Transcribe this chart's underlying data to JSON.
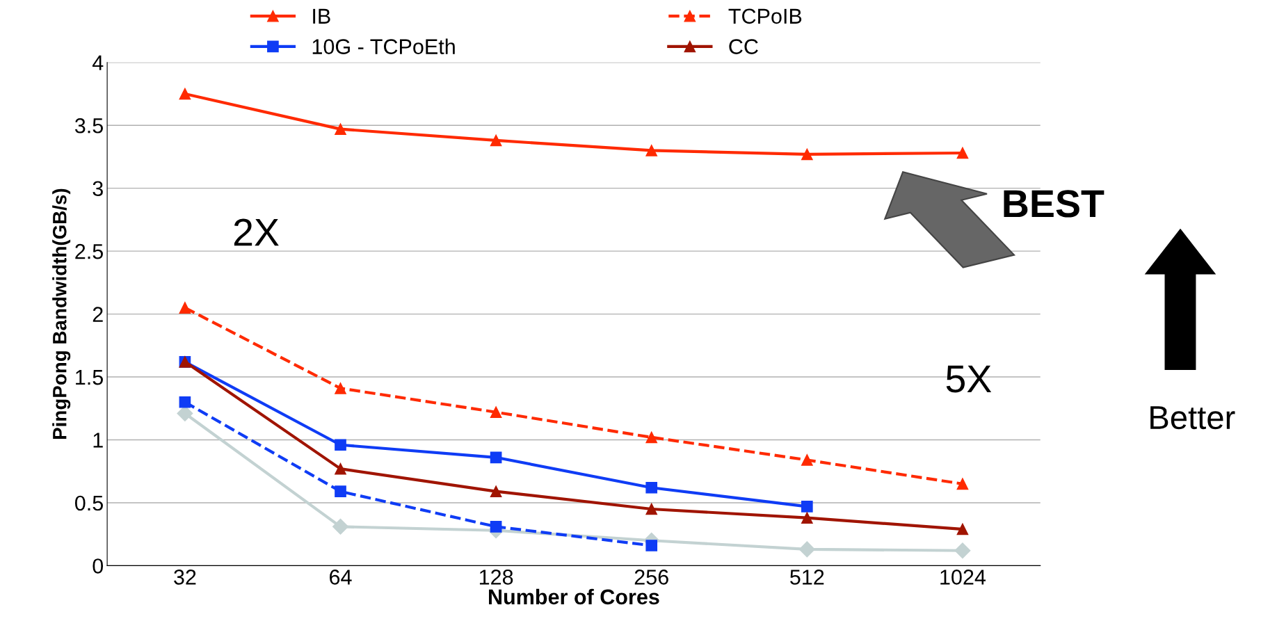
{
  "chart_data": {
    "type": "line",
    "xlabel": "Number of Cores",
    "ylabel": "PingPong Bandwidth(GB/s)",
    "categories": [
      "32",
      "64",
      "128",
      "256",
      "512",
      "1024"
    ],
    "ylim": [
      0,
      4
    ],
    "yticks": [
      0,
      0.5,
      1,
      1.5,
      2,
      2.5,
      3,
      3.5,
      4
    ],
    "grid": "y",
    "legend": "top",
    "series": [
      {
        "name": "IB",
        "color": "#ff2a00",
        "marker": "triangle",
        "line_style": "solid",
        "values": [
          3.75,
          3.47,
          3.38,
          3.3,
          3.27,
          3.28
        ]
      },
      {
        "name": "10G - TCPoEth",
        "color": "#0f3cf5",
        "marker": "square",
        "line_style": "solid",
        "values": [
          1.62,
          0.96,
          0.86,
          0.62,
          0.47,
          null
        ]
      },
      {
        "name": "TCPoIB",
        "color": "#ff2a00",
        "marker": "triangle",
        "line_style": "dashed",
        "values": [
          2.05,
          1.41,
          1.22,
          1.02,
          0.84,
          0.65
        ]
      },
      {
        "name": "CC",
        "color": "#a01400",
        "marker": "triangle",
        "line_style": "solid",
        "values": [
          1.62,
          0.77,
          0.59,
          0.45,
          0.38,
          0.29
        ]
      },
      {
        "color": "#c3d2d2",
        "marker": "diamond",
        "line_style": "solid",
        "values": [
          1.21,
          0.31,
          0.28,
          0.2,
          0.13,
          0.12
        ]
      },
      {
        "color": "#0f3cf5",
        "marker": "square",
        "line_style": "dashed",
        "values": [
          1.3,
          0.59,
          0.31,
          0.16,
          null,
          null
        ]
      }
    ],
    "annotations": [
      "2X",
      "BEST",
      "5X",
      "Better"
    ]
  }
}
